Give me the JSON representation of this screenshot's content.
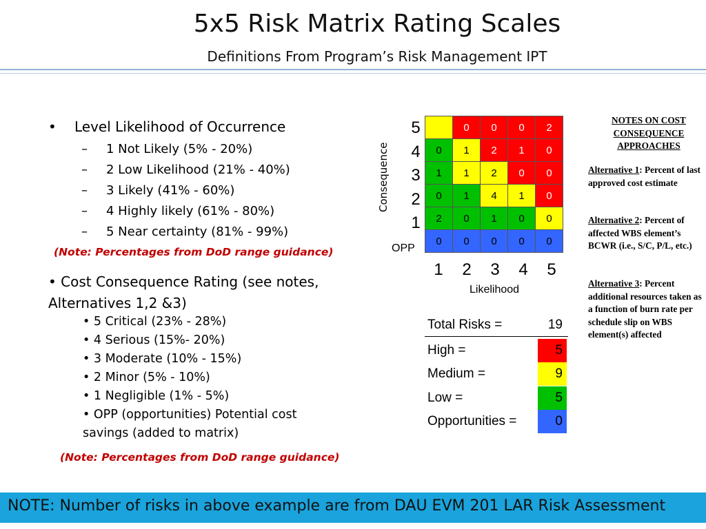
{
  "title": "5x5 Risk Matrix Rating Scales",
  "subtitle": "Definitions From Program’s Risk Management IPT",
  "likelihood": {
    "heading": "Level Likelihood of Occurrence",
    "levels": [
      "1 Not Likely (5% - 20%)",
      "2 Low Likelihood (21% - 40%)",
      "3 Likely (41% - 60%)",
      "4 Highly likely (61% - 80%)",
      "5 Near certainty (81% - 99%)"
    ],
    "note": "(Note: Percentages from DoD range guidance)"
  },
  "cost": {
    "heading": "Cost Consequence Rating (see notes, Alternatives 1,2 &3)",
    "items": [
      "5 Critical (23% - 28%)",
      "4 Serious (15%- 20%)",
      "3 Moderate (10% - 15%)",
      "2 Minor (5% - 10%)",
      "1 Negligible (1% - 5%)",
      "OPP (opportunities) Potential cost savings (added to matrix)"
    ],
    "note": "(Note: Percentages from DoD range guidance)"
  },
  "matrix": {
    "y_axis_label": "Consequence",
    "x_axis_label": "Likelihood",
    "row_labels": [
      "5",
      "4",
      "3",
      "2",
      "1",
      "OPP"
    ],
    "col_labels": [
      "1",
      "2",
      "3",
      "4",
      "5"
    ],
    "cells": [
      [
        "",
        "0",
        "0",
        "0",
        "2"
      ],
      [
        "0",
        "1",
        "2",
        "1",
        "0"
      ],
      [
        "1",
        "1",
        "2",
        "0",
        "0"
      ],
      [
        "0",
        "1",
        "4",
        "1",
        "0"
      ],
      [
        "2",
        "0",
        "1",
        "0",
        "0"
      ],
      [
        "0",
        "0",
        "0",
        "0",
        "0"
      ]
    ],
    "cell_colors": [
      [
        "yellow",
        "red",
        "red",
        "red",
        "red"
      ],
      [
        "green",
        "yellow",
        "red",
        "red",
        "red"
      ],
      [
        "green",
        "yellow",
        "yellow",
        "red",
        "red"
      ],
      [
        "green",
        "green",
        "yellow",
        "yellow",
        "red"
      ],
      [
        "green",
        "green",
        "green",
        "green",
        "yellow"
      ],
      [
        "blue",
        "blue",
        "blue",
        "blue",
        "blue"
      ]
    ],
    "colors": {
      "red": "#ff0000",
      "yellow": "#ffff00",
      "green": "#00c000",
      "blue": "#3366ff"
    }
  },
  "totals": {
    "total_label": "Total Risks =",
    "total_value": "19",
    "high_label": "High =",
    "high_value": "5",
    "medium_label": "Medium =",
    "medium_value": "9",
    "low_label": "Low =",
    "low_value": "5",
    "opp_label": "Opportunities =",
    "opp_value": "0"
  },
  "notes": {
    "heading": "NOTES ON COST CONSEQUENCE APPROACHES",
    "alt1_title": "Alternative 1",
    "alt1_text": ": Percent of last approved cost estimate",
    "alt2_title": "Alternative 2",
    "alt2_text": ": Percent of affected WBS element’s BCWR (i.e., S/C, P/L, etc.)",
    "alt3_title": "Alternative 3",
    "alt3_text": ": Percent additional resources taken as a function of burn rate per schedule slip on WBS element(s) affected"
  },
  "footer": "NOTE: Number of risks in above example are from DAU EVM 201 LAR Risk Assessment"
}
